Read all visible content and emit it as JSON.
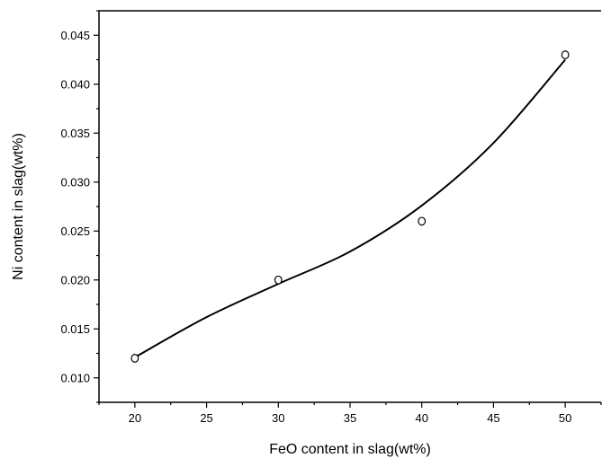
{
  "chart_data": {
    "type": "scatter",
    "title": "",
    "xlabel": "FeO content in slag(wt%)",
    "ylabel": "Ni content in slag(wt%)",
    "xlim": [
      17.5,
      52.5
    ],
    "ylim": [
      0.0075,
      0.0475
    ],
    "x_ticks": [
      20,
      25,
      30,
      35,
      40,
      45,
      50
    ],
    "y_ticks": [
      0.01,
      0.015,
      0.02,
      0.025,
      0.03,
      0.035,
      0.04,
      0.045
    ],
    "x_tick_labels": [
      "20",
      "25",
      "30",
      "35",
      "40",
      "45",
      "50"
    ],
    "y_tick_labels": [
      "0.010",
      "0.015",
      "0.020",
      "0.025",
      "0.030",
      "0.035",
      "0.040",
      "0.045"
    ],
    "points": [
      {
        "x": 20,
        "y": 0.012
      },
      {
        "x": 30,
        "y": 0.02
      },
      {
        "x": 40,
        "y": 0.026
      },
      {
        "x": 50,
        "y": 0.043
      }
    ],
    "fit_curve": {
      "x": [
        20,
        25,
        30,
        35,
        40,
        45,
        50
      ],
      "y": [
        0.0121,
        0.0162,
        0.0196,
        0.0229,
        0.0276,
        0.034,
        0.0425
      ]
    },
    "grid": false,
    "legend": "none",
    "marker": "open-circle"
  }
}
